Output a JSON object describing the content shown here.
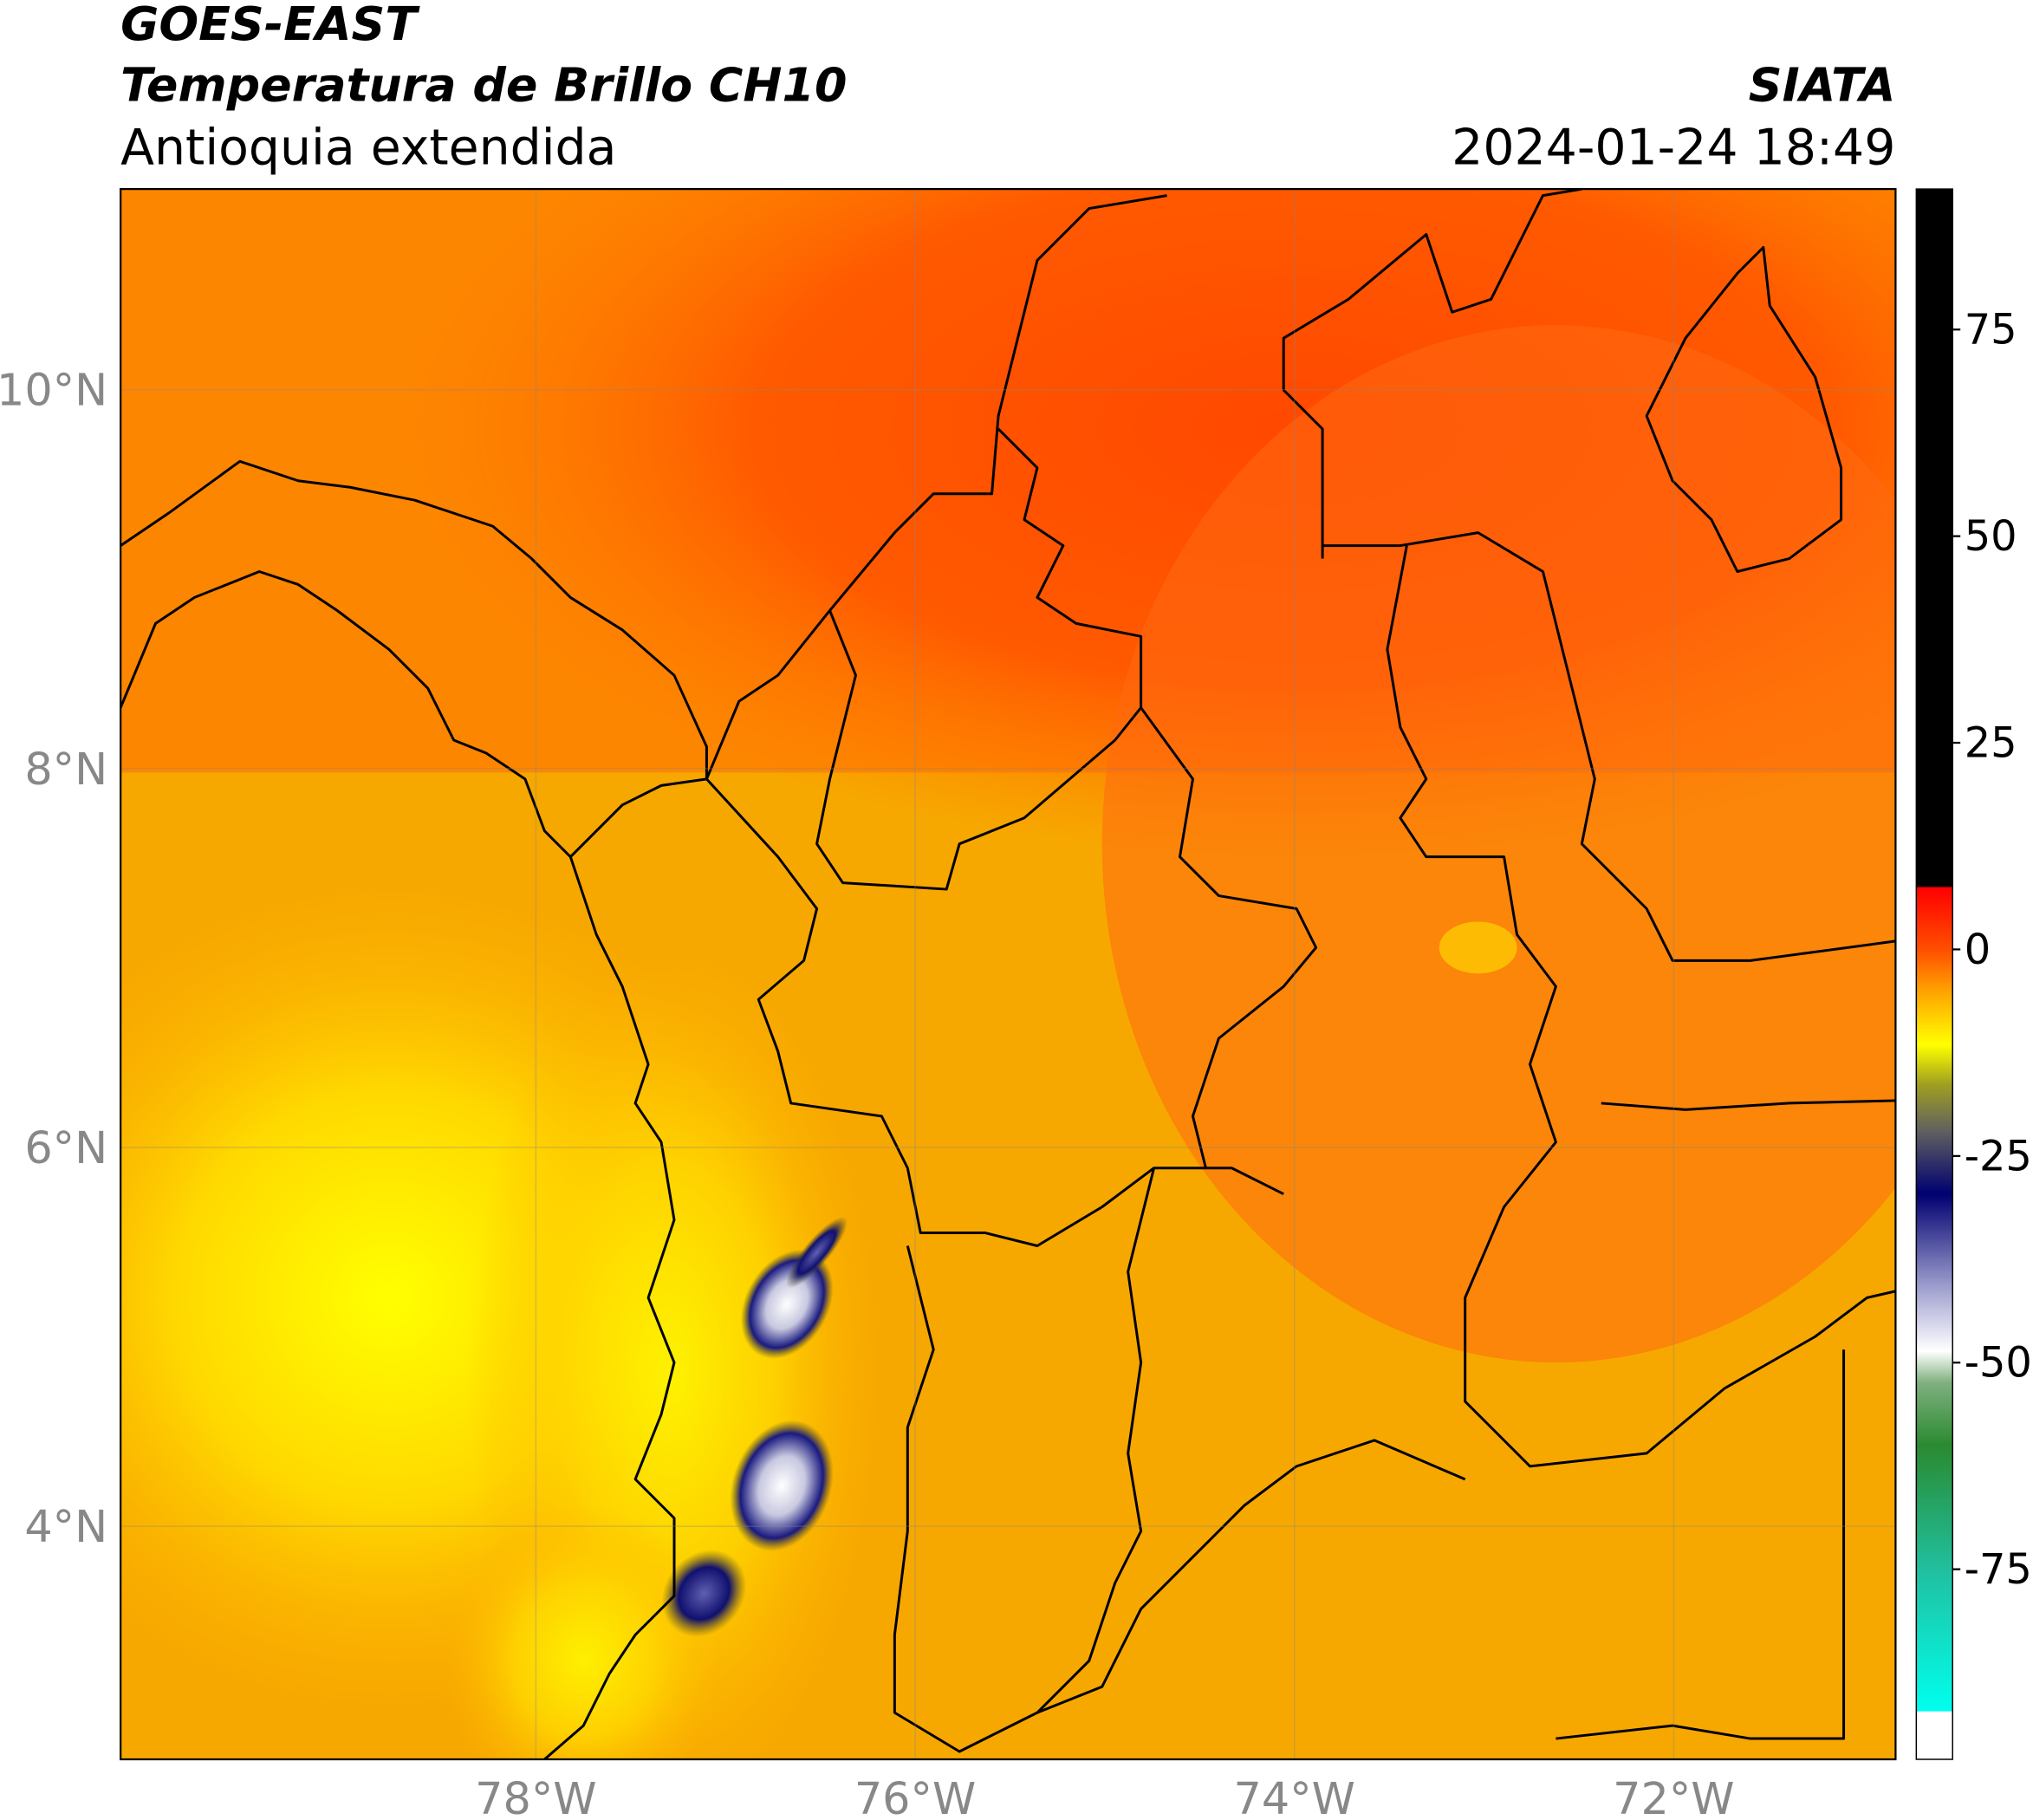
{
  "header": {
    "title_line1": "GOES-EAST",
    "title_line2": "Temperatura de Brillo CH10",
    "subtitle": "Antioquia extendida",
    "agency": "SIATA",
    "datetime": "2024-01-24 18:49"
  },
  "map": {
    "lon_range": [
      -80.19,
      -70.83
    ],
    "lat_range": [
      2.77,
      11.06
    ],
    "lon_ticks": [
      {
        "value": -78,
        "label": "78°W"
      },
      {
        "value": -76,
        "label": "76°W"
      },
      {
        "value": -74,
        "label": "74°W"
      },
      {
        "value": -72,
        "label": "72°W"
      }
    ],
    "lat_ticks": [
      {
        "value": 10,
        "label": "10°N"
      },
      {
        "value": 8,
        "label": "8°N"
      },
      {
        "value": 6,
        "label": "6°N"
      },
      {
        "value": 4,
        "label": "4°N"
      }
    ]
  },
  "colorbar": {
    "range": [
      -98,
      92
    ],
    "ticks": [
      75,
      50,
      25,
      0,
      -25,
      -50,
      -75
    ]
  }
}
